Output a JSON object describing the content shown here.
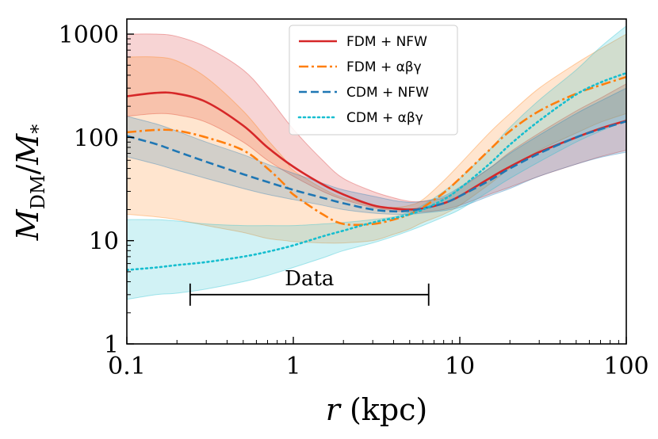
{
  "chart_data": {
    "type": "line",
    "title": "",
    "xlabel": "r (kpc)",
    "ylabel": "M_DM / M_*",
    "xscale": "log",
    "yscale": "log",
    "xlim": [
      0.1,
      100
    ],
    "ylim": [
      1,
      1400
    ],
    "xticks": [
      {
        "value": 0.1,
        "label": "0.1"
      },
      {
        "value": 1,
        "label": "1"
      },
      {
        "value": 10,
        "label": "10"
      },
      {
        "value": 100,
        "label": "100"
      }
    ],
    "yticks": [
      {
        "value": 1,
        "label": "1"
      },
      {
        "value": 10,
        "label": "10"
      },
      {
        "value": 100,
        "label": "100"
      },
      {
        "value": 1000,
        "label": "1000"
      }
    ],
    "grid": false,
    "legend_position": "top-center",
    "series": [
      {
        "name": "FDM + NFW",
        "color": "#d62728",
        "style": "solid",
        "x": [
          0.1,
          0.15,
          0.2,
          0.3,
          0.5,
          0.7,
          1,
          1.5,
          2,
          3,
          4,
          5,
          6,
          8,
          10,
          15,
          20,
          30,
          50,
          70,
          100
        ],
        "y": [
          250,
          270,
          265,
          220,
          130,
          80,
          52,
          35,
          28,
          22,
          20.5,
          20,
          20.5,
          23,
          27,
          40,
          52,
          72,
          100,
          122,
          145
        ],
        "band": {
          "color": "#d62728",
          "lower": [
            160,
            170,
            165,
            140,
            90,
            60,
            42,
            30,
            25,
            21,
            19.5,
            19,
            19,
            20,
            22,
            28,
            33,
            42,
            55,
            65,
            75
          ],
          "upper": [
            1000,
            1000,
            950,
            750,
            450,
            250,
            120,
            60,
            40,
            30,
            26,
            24,
            24,
            26,
            32,
            50,
            72,
            110,
            180,
            240,
            330
          ]
        }
      },
      {
        "name": "FDM + αβγ",
        "color": "#ff7f0e",
        "style": "dashdot",
        "x": [
          0.1,
          0.15,
          0.2,
          0.3,
          0.5,
          0.7,
          0.9,
          1,
          1.5,
          2,
          3,
          4,
          5,
          6,
          8,
          10,
          15,
          20,
          30,
          50,
          70,
          100
        ],
        "y": [
          112,
          118,
          116,
          100,
          75,
          50,
          34,
          28,
          18,
          14.5,
          14.5,
          16,
          18,
          21,
          29,
          40,
          75,
          115,
          180,
          265,
          320,
          385
        ],
        "band": {
          "color": "#ff7f0e",
          "lower": [
            18,
            17,
            16,
            14,
            12,
            10.5,
            10,
            9.8,
            9.5,
            9.5,
            10,
            11.5,
            13,
            15,
            18,
            22,
            35,
            50,
            75,
            110,
            140,
            170
          ],
          "upper": [
            600,
            600,
            550,
            380,
            180,
            95,
            60,
            48,
            32,
            26,
            22,
            21,
            22,
            25,
            38,
            55,
            110,
            170,
            300,
            520,
            720,
            1000
          ]
        }
      },
      {
        "name": "CDM + NFW",
        "color": "#1f77b4",
        "style": "dashed",
        "x": [
          0.1,
          0.15,
          0.2,
          0.3,
          0.5,
          0.7,
          1,
          1.5,
          2,
          3,
          4,
          5,
          6,
          8,
          10,
          15,
          20,
          30,
          50,
          70,
          100
        ],
        "y": [
          103,
          86,
          73,
          58,
          44,
          37,
          31,
          26,
          23,
          20,
          19.2,
          19.5,
          20.5,
          23,
          27,
          38,
          50,
          70,
          100,
          120,
          143
        ],
        "band": {
          "color": "#1f77b4",
          "lower": [
            65,
            55,
            48,
            40,
            32,
            28,
            25,
            22,
            20,
            18.5,
            18,
            18,
            18.5,
            19.5,
            21,
            27,
            32,
            42,
            55,
            64,
            72
          ],
          "upper": [
            160,
            135,
            115,
            90,
            68,
            55,
            45,
            36,
            31,
            27,
            24.5,
            23.5,
            24,
            27,
            33,
            50,
            70,
            105,
            170,
            225,
            300
          ]
        }
      },
      {
        "name": "CDM + αβγ",
        "color": "#17becf",
        "style": "dotted",
        "x": [
          0.1,
          0.15,
          0.2,
          0.3,
          0.5,
          0.7,
          1,
          1.5,
          2,
          3,
          4,
          5,
          6,
          8,
          10,
          15,
          20,
          30,
          50,
          70,
          100
        ],
        "y": [
          5.2,
          5.5,
          5.8,
          6.2,
          7,
          7.8,
          9,
          11,
          12.5,
          15,
          16.5,
          18,
          20,
          25,
          32,
          55,
          85,
          145,
          260,
          340,
          420
        ],
        "band": {
          "color": "#17becf",
          "lower": [
            2.7,
            3,
            3.1,
            3.4,
            4,
            4.6,
            5.5,
            6.8,
            8,
            9.5,
            11,
            12.5,
            14,
            17,
            20,
            30,
            40,
            58,
            90,
            115,
            145
          ],
          "upper": [
            16,
            16,
            15.5,
            14.5,
            14,
            14,
            14,
            14.5,
            15,
            16,
            17,
            19,
            22,
            30,
            40,
            75,
            125,
            230,
            450,
            750,
            1200
          ]
        }
      }
    ],
    "annotations": [
      {
        "text": "Data",
        "type": "range",
        "x_start": 0.24,
        "x_end": 6.5,
        "y": 3.0
      }
    ]
  }
}
